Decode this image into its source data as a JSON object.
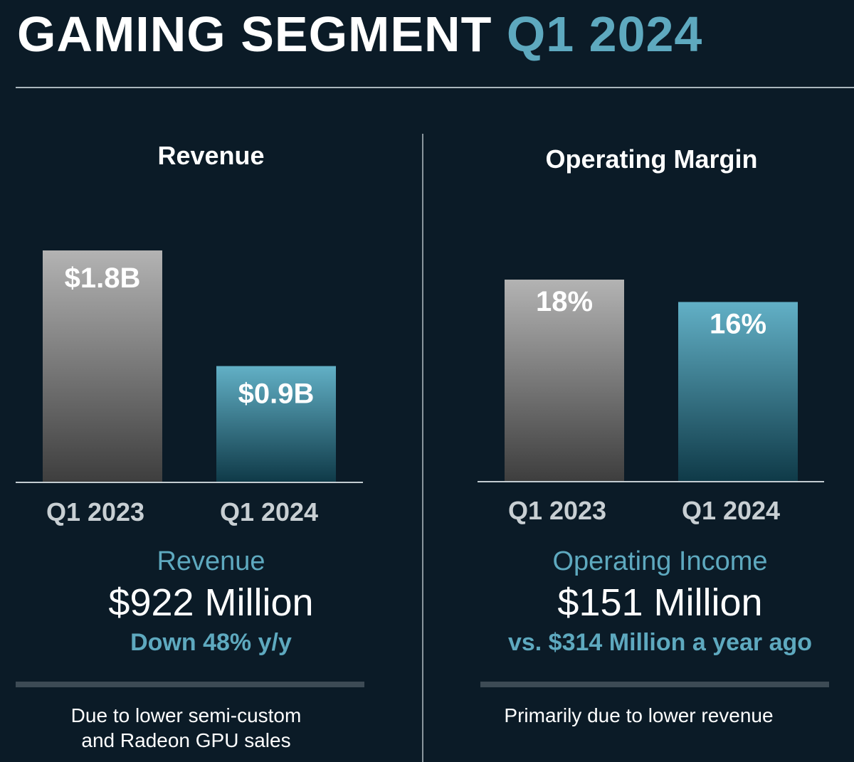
{
  "header": {
    "title_main": "GAMING SEGMENT",
    "title_accent": "Q1 2024"
  },
  "colors": {
    "background": "#0b1b27",
    "accent": "#5ea9bf",
    "bar_prior_top": "#b3b3b3",
    "bar_prior_bottom": "#3e3e3e",
    "bar_current_top": "#62b0c6",
    "bar_current_bottom": "#0f3a48"
  },
  "chart_data": [
    {
      "type": "bar",
      "title": "Revenue",
      "categories": [
        "Q1 2023",
        "Q1 2024"
      ],
      "values": [
        1.8,
        0.9
      ],
      "value_labels": [
        "$1.8B",
        "$0.9B"
      ],
      "unit": "$B",
      "ylim": [
        0,
        1.8
      ]
    },
    {
      "type": "bar",
      "title": "Operating Margin",
      "categories": [
        "Q1 2023",
        "Q1 2024"
      ],
      "values": [
        18,
        16
      ],
      "value_labels": [
        "18%",
        "16%"
      ],
      "unit": "%",
      "ylim": [
        0,
        18
      ]
    }
  ],
  "revenue_summary": {
    "label": "Revenue",
    "value": "$922 Million",
    "note": "Down 48% y/y",
    "explanation_line1": "Due to lower semi-custom",
    "explanation_line2": "and Radeon GPU sales"
  },
  "income_summary": {
    "label": "Operating Income",
    "value": "$151 Million",
    "note": "vs. $314 Million a year ago",
    "explanation_line1": "Primarily due to lower revenue"
  }
}
